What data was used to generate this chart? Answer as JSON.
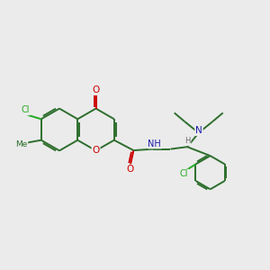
{
  "background_color": "#ebebeb",
  "bond_color": "#2d6e2d",
  "bond_width": 1.4,
  "atom_colors": {
    "O": "#cc0000",
    "N": "#1a1aaa",
    "Cl": "#22aa22",
    "H": "#666666",
    "C": "#2d6e2d"
  },
  "figsize": [
    3.0,
    3.0
  ],
  "dpi": 100
}
